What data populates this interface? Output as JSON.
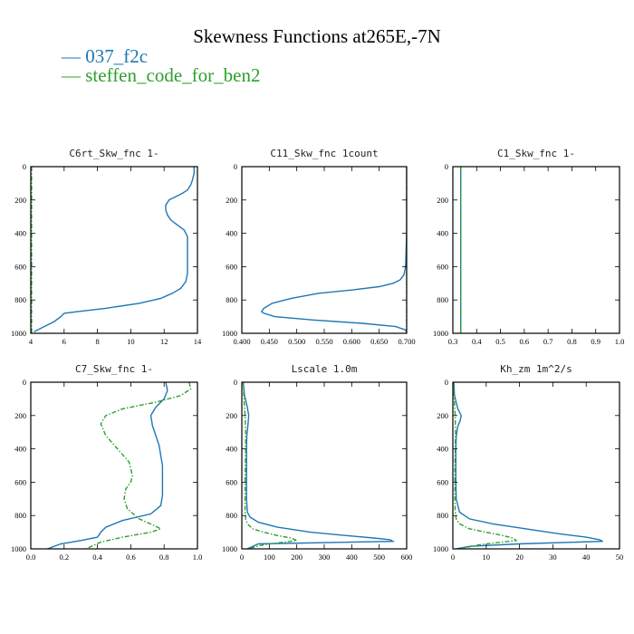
{
  "title": "Skewness Functions at265E,-7N",
  "legend": [
    {
      "label": "037_f2c",
      "color": "#1f77b4",
      "dash": "solid"
    },
    {
      "label": "steffen_code_for_ben2",
      "color": "#2ca02c",
      "dash": "dashdot"
    }
  ],
  "chart_data": [
    {
      "type": "line",
      "title": "C6rt_Skw_fnc   1-",
      "xlim": [
        4,
        14
      ],
      "ylim": [
        1000,
        0
      ],
      "xticks": [
        "4",
        "6",
        "8",
        "10",
        "12",
        "14"
      ],
      "xtick_values": [
        4,
        6,
        8,
        10,
        12,
        14
      ],
      "yticks": [
        "0",
        "200",
        "400",
        "600",
        "800",
        "1000"
      ],
      "ytick_values": [
        0,
        200,
        400,
        600,
        800,
        1000
      ],
      "series": [
        {
          "name": "037_f2c",
          "x": [
            13.8,
            13.8,
            13.7,
            13.6,
            13.4,
            13.1,
            12.7,
            12.3,
            12.1,
            12.1,
            12.2,
            12.4,
            12.8,
            13.2,
            13.4,
            13.4,
            13.4,
            13.4,
            13.4,
            13.3,
            13.0,
            12.5,
            11.8,
            10.5,
            8.5,
            6.8,
            6.0,
            5.8,
            5.4,
            4.8,
            4.2
          ],
          "y": [
            0,
            40,
            80,
            110,
            140,
            160,
            180,
            200,
            230,
            260,
            290,
            320,
            350,
            380,
            420,
            470,
            520,
            580,
            640,
            690,
            730,
            760,
            790,
            820,
            850,
            870,
            880,
            900,
            930,
            960,
            990
          ]
        },
        {
          "name": "steffen_code_for_ben2",
          "x": [
            4.05,
            4.05,
            4.05,
            4.05,
            4.05,
            4.05
          ],
          "y": [
            0,
            200,
            400,
            600,
            800,
            1000
          ]
        }
      ]
    },
    {
      "type": "line",
      "title": "C11_Skw_fnc   1count",
      "xlim": [
        0.4,
        0.7
      ],
      "ylim": [
        1000,
        0
      ],
      "xticks": [
        "0.400",
        "0.450",
        "0.500",
        "0.550",
        "0.600",
        "0.650",
        "0.700"
      ],
      "xtick_values": [
        0.4,
        0.45,
        0.5,
        0.55,
        0.6,
        0.65,
        0.7
      ],
      "yticks": [
        "0",
        "200",
        "400",
        "600",
        "800",
        "1000"
      ],
      "ytick_values": [
        0,
        200,
        400,
        600,
        800,
        1000
      ],
      "series": [
        {
          "name": "037_f2c",
          "x": [
            0.7,
            0.7,
            0.7,
            0.699,
            0.698,
            0.695,
            0.688,
            0.675,
            0.65,
            0.6,
            0.54,
            0.49,
            0.455,
            0.44,
            0.436,
            0.44,
            0.46,
            0.53,
            0.62,
            0.68,
            0.698,
            0.7
          ],
          "y": [
            0,
            200,
            400,
            500,
            600,
            650,
            680,
            700,
            720,
            740,
            760,
            790,
            820,
            850,
            870,
            880,
            900,
            920,
            940,
            960,
            980,
            1000
          ]
        },
        {
          "name": "steffen_code_for_ben2",
          "x": [
            0.7,
            0.7,
            0.7
          ],
          "y": [
            0,
            500,
            1000
          ]
        }
      ]
    },
    {
      "type": "line",
      "title": "C1_Skw_fnc   1-",
      "xlim": [
        0.3,
        1.0
      ],
      "ylim": [
        1000,
        0
      ],
      "xticks": [
        "0.3",
        "0.4",
        "0.5",
        "0.6",
        "0.7",
        "0.8",
        "0.9",
        "1.0"
      ],
      "xtick_values": [
        0.3,
        0.4,
        0.5,
        0.6,
        0.7,
        0.8,
        0.9,
        1.0
      ],
      "yticks": [
        "0",
        "200",
        "400",
        "600",
        "800",
        "1000"
      ],
      "ytick_values": [
        0,
        200,
        400,
        600,
        800,
        1000
      ],
      "series": [
        {
          "name": "037_f2c",
          "x": [
            0.333,
            0.333,
            0.333
          ],
          "y": [
            0,
            500,
            1000
          ]
        },
        {
          "name": "steffen_code_for_ben2",
          "x": [
            0.333,
            0.333,
            0.333
          ],
          "y": [
            0,
            500,
            1000
          ]
        }
      ]
    },
    {
      "type": "line",
      "title": "C7_Skw_fnc   1-",
      "xlim": [
        0.0,
        1.0
      ],
      "ylim": [
        1000,
        0
      ],
      "xticks": [
        "0.0",
        "0.2",
        "0.4",
        "0.6",
        "0.8",
        "1.0"
      ],
      "xtick_values": [
        0,
        0.2,
        0.4,
        0.6,
        0.8,
        1.0
      ],
      "yticks": [
        "0",
        "200",
        "400",
        "600",
        "800",
        "1000"
      ],
      "ytick_values": [
        0,
        200,
        400,
        600,
        800,
        1000
      ],
      "series": [
        {
          "name": "037_f2c",
          "x": [
            0.81,
            0.82,
            0.8,
            0.75,
            0.72,
            0.73,
            0.75,
            0.77,
            0.78,
            0.79,
            0.79,
            0.79,
            0.79,
            0.78,
            0.72,
            0.55,
            0.45,
            0.42,
            0.4,
            0.3,
            0.18,
            0.1
          ],
          "y": [
            0,
            50,
            100,
            150,
            200,
            260,
            320,
            380,
            440,
            500,
            560,
            620,
            680,
            740,
            790,
            830,
            870,
            900,
            930,
            950,
            970,
            1000
          ]
        },
        {
          "name": "steffen_code_for_ben2",
          "x": [
            0.95,
            0.96,
            0.9,
            0.75,
            0.55,
            0.45,
            0.42,
            0.45,
            0.52,
            0.59,
            0.61,
            0.6,
            0.57,
            0.56,
            0.58,
            0.65,
            0.74,
            0.78,
            0.72,
            0.55,
            0.42,
            0.33
          ],
          "y": [
            0,
            40,
            80,
            120,
            160,
            200,
            250,
            320,
            400,
            480,
            560,
            600,
            640,
            700,
            760,
            820,
            860,
            880,
            900,
            930,
            960,
            1000
          ]
        }
      ]
    },
    {
      "type": "line",
      "title": "Lscale   1.0m",
      "xlim": [
        0,
        600
      ],
      "ylim": [
        1000,
        0
      ],
      "xticks": [
        "0",
        "100",
        "200",
        "300",
        "400",
        "500",
        "600"
      ],
      "xtick_values": [
        0,
        100,
        200,
        300,
        400,
        500,
        600
      ],
      "yticks": [
        "0",
        "200",
        "400",
        "600",
        "800",
        "1000"
      ],
      "ytick_values": [
        0,
        200,
        400,
        600,
        800,
        1000
      ],
      "series": [
        {
          "name": "037_f2c",
          "x": [
            5,
            10,
            20,
            25,
            22,
            18,
            17,
            17,
            17,
            17,
            20,
            30,
            60,
            130,
            250,
            380,
            480,
            540,
            550,
            60,
            20
          ],
          "y": [
            0,
            80,
            150,
            200,
            260,
            320,
            400,
            500,
            600,
            700,
            780,
            810,
            840,
            870,
            900,
            920,
            935,
            945,
            955,
            970,
            1000
          ]
        },
        {
          "name": "steffen_code_for_ben2",
          "x": [
            5,
            8,
            12,
            14,
            14,
            13,
            12,
            12,
            12,
            14,
            20,
            40,
            80,
            130,
            180,
            200,
            80,
            20
          ],
          "y": [
            0,
            100,
            200,
            300,
            400,
            500,
            600,
            700,
            780,
            820,
            850,
            880,
            900,
            920,
            935,
            950,
            975,
            1000
          ]
        }
      ]
    },
    {
      "type": "line",
      "title": "Kh_zm   1m^2/s",
      "xlim": [
        0,
        50
      ],
      "ylim": [
        1000,
        0
      ],
      "xticks": [
        "0",
        "10",
        "20",
        "30",
        "40",
        "50"
      ],
      "xtick_values": [
        0,
        10,
        20,
        30,
        40,
        50
      ],
      "yticks": [
        "0",
        "200",
        "400",
        "600",
        "800",
        "1000"
      ],
      "ytick_values": [
        0,
        200,
        400,
        600,
        800,
        1000
      ],
      "series": [
        {
          "name": "037_f2c",
          "x": [
            0.3,
            0.5,
            1.5,
            2.5,
            2.2,
            1.4,
            1.0,
            0.9,
            0.9,
            0.9,
            1.0,
            2.0,
            5.0,
            12,
            22,
            32,
            40,
            44,
            45,
            20,
            5,
            1
          ],
          "y": [
            0,
            80,
            160,
            200,
            230,
            270,
            330,
            400,
            500,
            600,
            700,
            780,
            820,
            850,
            880,
            910,
            930,
            945,
            955,
            970,
            985,
            1000
          ]
        },
        {
          "name": "steffen_code_for_ben2",
          "x": [
            0.2,
            0.4,
            0.7,
            0.8,
            0.7,
            0.6,
            0.6,
            0.6,
            0.7,
            1.0,
            2.0,
            5.0,
            10,
            15,
            18,
            19,
            8,
            2
          ],
          "y": [
            0,
            100,
            200,
            300,
            400,
            500,
            600,
            700,
            780,
            820,
            850,
            880,
            900,
            920,
            935,
            950,
            975,
            1000
          ]
        }
      ]
    }
  ]
}
